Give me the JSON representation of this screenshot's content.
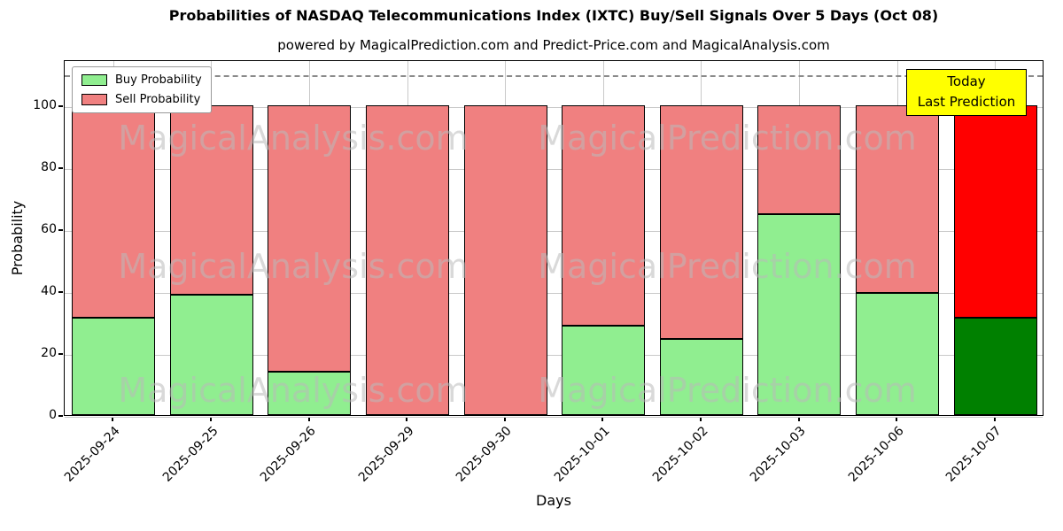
{
  "title": "Probabilities of NASDAQ Telecommunications Index (IXTC) Buy/Sell Signals Over 5 Days (Oct 08)",
  "subtitle": "powered by MagicalPrediction.com and Predict-Price.com and MagicalAnalysis.com",
  "annotation": {
    "line1": "Today",
    "line2": "Last Prediction",
    "bg_color": "#FFFF00"
  },
  "watermark": {
    "left": "MagicalAnalysis.com",
    "right": "MagicalPrediction.com"
  },
  "chart_data": {
    "type": "bar",
    "stacked": true,
    "title": "Probabilities of NASDAQ Telecommunications Index (IXTC) Buy/Sell Signals Over 5 Days (Oct 08)",
    "categories": [
      "2025-09-24",
      "2025-09-25",
      "2025-09-26",
      "2025-09-29",
      "2025-09-30",
      "2025-10-01",
      "2025-10-02",
      "2025-10-03",
      "2025-10-06",
      "2025-10-07"
    ],
    "series": [
      {
        "name": "Buy Probability",
        "color": "#90EE90",
        "last_color": "#008000",
        "values": [
          31.5,
          39,
          14,
          0,
          0,
          29,
          24.5,
          65,
          39.5,
          31.5
        ]
      },
      {
        "name": "Sell Probability",
        "color": "#F08080",
        "last_color": "#FF0000",
        "values": [
          68.5,
          61,
          86,
          100,
          100,
          71,
          75.5,
          35,
          60.5,
          68.5
        ]
      }
    ],
    "xlabel": "Days",
    "ylabel": "Probability",
    "ylim": [
      0,
      115
    ],
    "yticks": [
      0,
      20,
      40,
      60,
      80,
      100
    ],
    "dashed_line_y": 110,
    "legend_position": "upper left",
    "grid": true
  }
}
